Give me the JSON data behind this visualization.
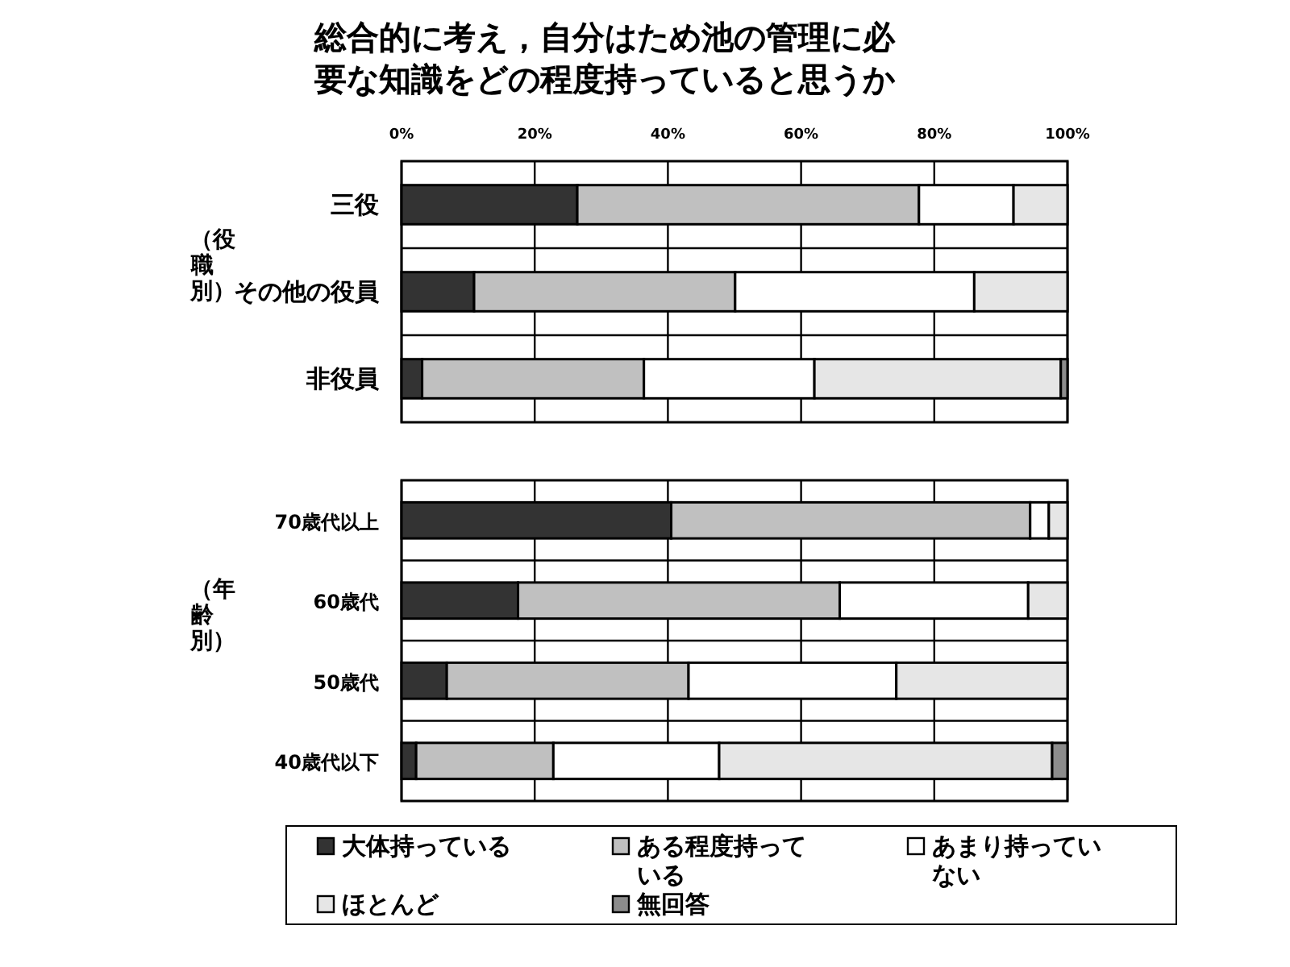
{
  "chart_data": [
    {
      "type": "bar",
      "orientation": "horizontal",
      "stacked": true,
      "title": "総合的に考え，自分はため池の管理に必要な知識をどの程度持っていると思うか",
      "ylabel": "（役職別）",
      "categories": [
        "三役",
        "その他の役員",
        "非役員"
      ],
      "xlim": [
        0,
        100
      ],
      "xticks": [
        {
          "value": 0,
          "label": "0%"
        },
        {
          "value": 20,
          "label": "20%"
        },
        {
          "value": 40,
          "label": "40%"
        },
        {
          "value": 60,
          "label": "60%"
        },
        {
          "value": 80,
          "label": "80%"
        },
        {
          "value": 100,
          "label": "100%"
        }
      ],
      "grid": true,
      "series": [
        {
          "color": "#333333",
          "values": [
            26.4,
            10.9,
            3.1
          ]
        },
        {
          "color": "#c0c0c0",
          "values": [
            51.3,
            39.2,
            33.3
          ]
        },
        {
          "color": "#ffffff",
          "values": [
            14.2,
            35.9,
            25.6
          ]
        },
        {
          "color": "#e6e6e6",
          "values": [
            8.1,
            14.0,
            37.0
          ]
        },
        {
          "color": "#8c8c8c",
          "values": [
            0,
            0,
            1.0
          ]
        }
      ]
    },
    {
      "type": "bar",
      "orientation": "horizontal",
      "stacked": true,
      "ylabel": "（年齢別）",
      "categories": [
        "70歳代以上",
        "60歳代",
        "50歳代",
        "40歳代以下"
      ],
      "xlim": [
        0,
        100
      ],
      "xticks": [
        {
          "value": 0,
          "label": null
        },
        {
          "value": 20,
          "label": null
        },
        {
          "value": 40,
          "label": null
        },
        {
          "value": 60,
          "label": null
        },
        {
          "value": 80,
          "label": null
        },
        {
          "value": 100,
          "label": null
        }
      ],
      "tick_labels": "y",
      "grid": true,
      "legend": "bottom",
      "series": [
        {
          "name": "大体持っている",
          "color": "#333333",
          "values": [
            40.5,
            17.5,
            6.8,
            2.2
          ]
        },
        {
          "name": "ある程度持っている",
          "color": "#c0c0c0",
          "values": [
            53.9,
            48.3,
            36.3,
            20.6
          ]
        },
        {
          "name": "あまり持っていない",
          "color": "#ffffff",
          "values": [
            2.8,
            28.3,
            31.2,
            24.9
          ]
        },
        {
          "name": "ほとんど",
          "color": "#e6e6e6",
          "values": [
            2.8,
            5.9,
            25.7,
            50.0
          ]
        },
        {
          "name": "無回答",
          "color": "#8c8c8c",
          "values": [
            0,
            0,
            0,
            2.3
          ]
        }
      ]
    }
  ]
}
